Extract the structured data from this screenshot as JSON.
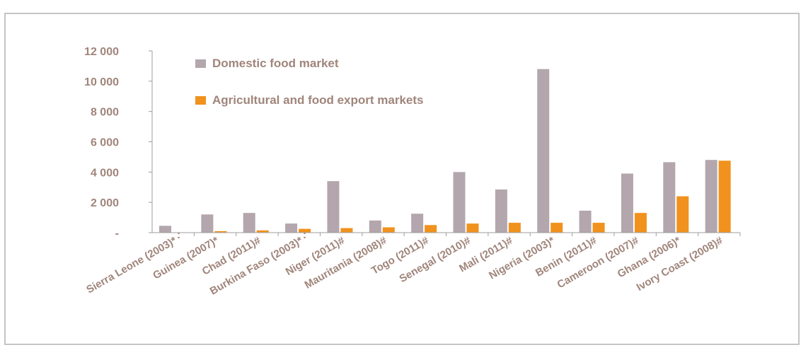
{
  "colors": {
    "domestic": "#b3a6ad",
    "export": "#f0921d",
    "axis": "#9d9d9d",
    "text": "#a0857b"
  },
  "chart_data": {
    "type": "bar",
    "categories": [
      "Sierra Leone (2003)*",
      "Guinea (2007)*",
      "Chad (2011)#",
      "Burkina Faso (2003)*",
      "Niger (2011)#",
      "Mauritania (2008)#",
      "Togo (2011)#",
      "Senegal (2010)#",
      "Mali (2011)#",
      "Nigeria (2003)*",
      "Benin (2011)#",
      "Cameroon (2007)#",
      "Ghana (2006)*",
      "Ivory Coast (2008)#"
    ],
    "series": [
      {
        "name": "Domestic food market",
        "values": [
          450,
          1200,
          1300,
          600,
          3400,
          800,
          1250,
          4000,
          2850,
          10800,
          1450,
          3900,
          4650,
          4800
        ]
      },
      {
        "name": "Agricultural and food export markets",
        "values": [
          null,
          100,
          150,
          250,
          300,
          350,
          500,
          600,
          650,
          650,
          650,
          1300,
          2400,
          4750
        ]
      }
    ],
    "missing_markers": [
      ":",
      null,
      null,
      ":",
      null,
      null,
      null,
      null,
      null,
      null,
      null,
      null,
      null,
      null
    ],
    "yticks": [
      0,
      2000,
      4000,
      6000,
      8000,
      10000,
      12000
    ],
    "ytick_labels": [
      "-",
      "2 000",
      "4 000",
      "6 000",
      "8 000",
      "10 000",
      "12 000"
    ],
    "ylim": [
      0,
      12000
    ],
    "legend_position": "top-left",
    "grid": false
  }
}
